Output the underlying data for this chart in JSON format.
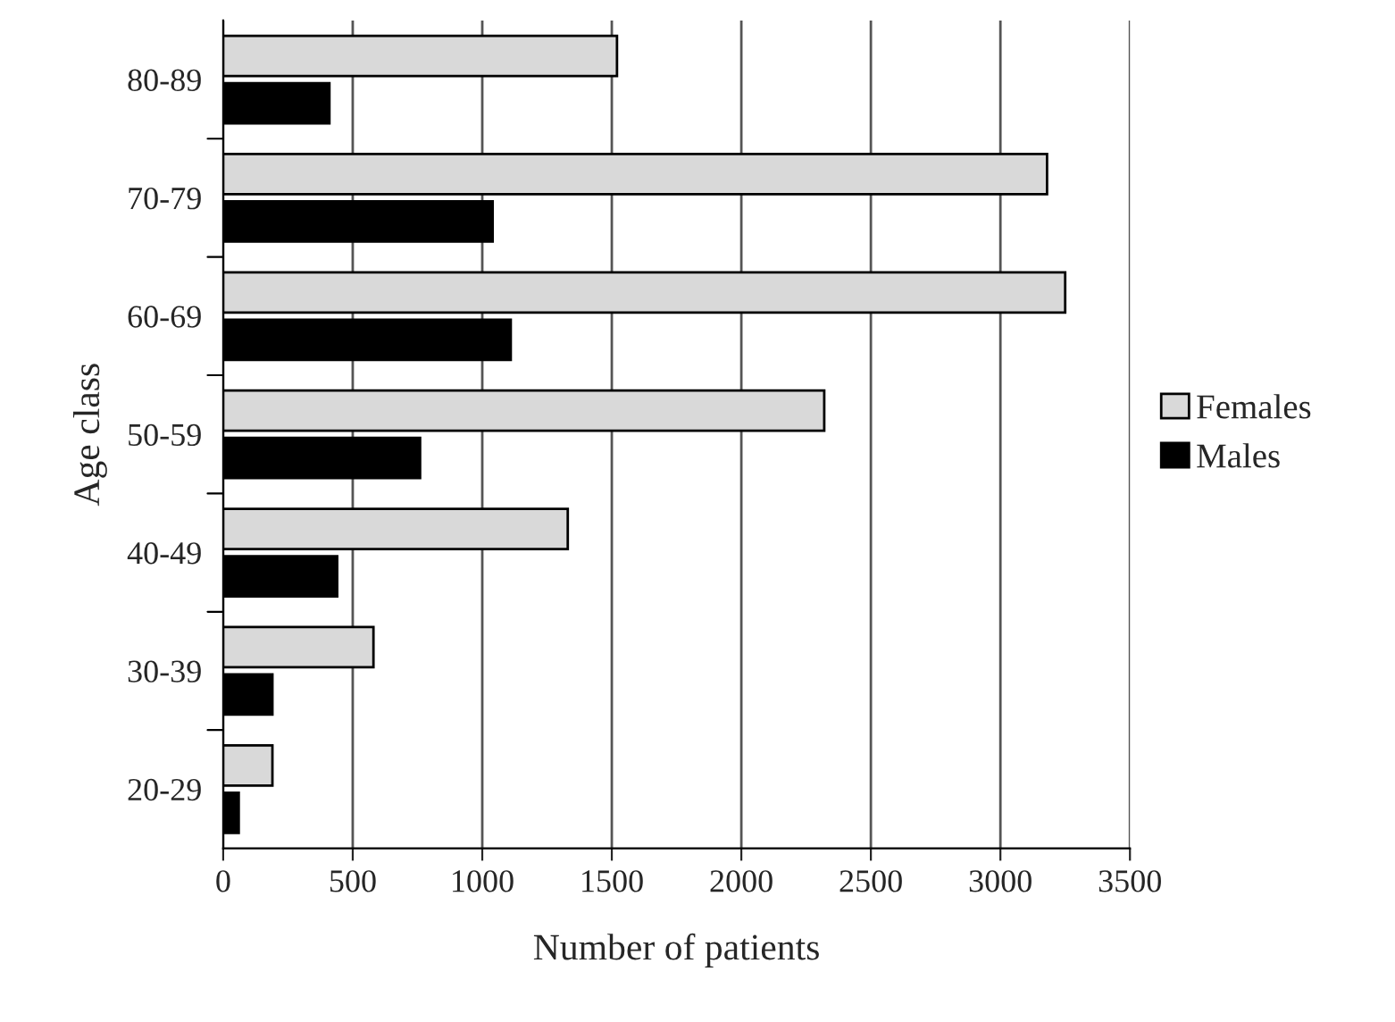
{
  "chart_data": {
    "type": "bar",
    "orientation": "horizontal",
    "xlabel": "Number of patients",
    "ylabel": "Age class",
    "categories": [
      "80-89",
      "70-79",
      "60-69",
      "50-59",
      "40-49",
      "30-39",
      "20-29"
    ],
    "series": [
      {
        "name": "Females",
        "color": "#d9d9d9",
        "values": [
          1520,
          3180,
          3250,
          2320,
          1330,
          580,
          190
        ]
      },
      {
        "name": "Males",
        "color": "#000000",
        "values": [
          410,
          1040,
          1110,
          760,
          440,
          190,
          60
        ]
      }
    ],
    "xlim": [
      0,
      3500
    ],
    "xticks": [
      0,
      500,
      1000,
      1500,
      2000,
      2500,
      3000,
      3500
    ],
    "grid": "x",
    "legend": "right"
  }
}
